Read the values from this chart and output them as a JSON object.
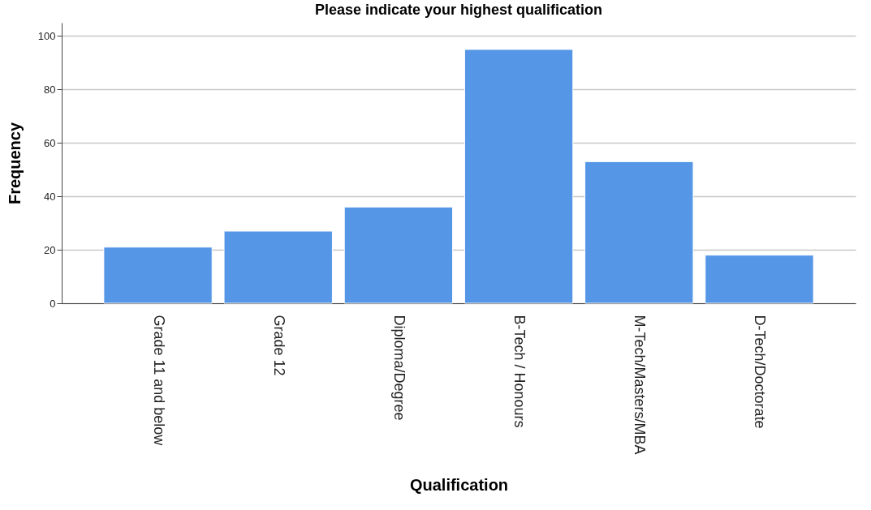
{
  "chart_data": {
    "type": "bar",
    "title": "Please indicate your highest qualification",
    "xlabel": "Qualification",
    "ylabel": "Frequency",
    "categories": [
      "Grade 11 and below",
      "Grade 12",
      "Diploma/Degree",
      "B-Tech / Honours",
      "M-Tech/Masters/MBA",
      "D-Tech/Doctorate"
    ],
    "values": [
      21,
      27,
      36,
      95,
      53,
      18
    ],
    "color": "#5596e6",
    "ylim": [
      0,
      105
    ],
    "yticks": [
      0,
      20,
      40,
      60,
      80,
      100
    ],
    "grid": "y"
  }
}
